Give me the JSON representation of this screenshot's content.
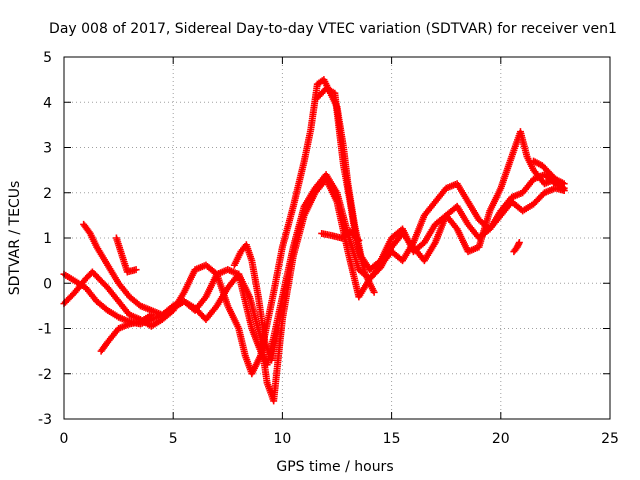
{
  "chart_data": {
    "type": "scatter",
    "title": "Day 008 of 2017, Sidereal Day-to-day VTEC variation (SDTVAR) for receiver ven1",
    "xlabel": "GPS time / hours",
    "ylabel": "SDTVAR / TECUs",
    "xlim": [
      0,
      25
    ],
    "ylim": [
      -3,
      5
    ],
    "xticks": [
      "0",
      "5",
      "10",
      "15",
      "20",
      "25"
    ],
    "yticks": [
      "-3",
      "-2",
      "-1",
      "0",
      "1",
      "2",
      "3",
      "4",
      "5"
    ],
    "grid": true,
    "marker": "plus",
    "color": "#ff0000",
    "series": [
      {
        "points": [
          [
            0.0,
            0.2
          ],
          [
            0.5,
            0.05
          ],
          [
            1.0,
            -0.1
          ],
          [
            1.5,
            -0.4
          ],
          [
            2.0,
            -0.6
          ],
          [
            2.5,
            -0.75
          ],
          [
            3.0,
            -0.85
          ],
          [
            3.5,
            -0.9
          ],
          [
            4.0,
            -0.8
          ],
          [
            4.5,
            -0.7
          ],
          [
            5.0,
            -0.55
          ],
          [
            5.5,
            -0.4
          ],
          [
            6.0,
            -0.55
          ],
          [
            6.5,
            -0.8
          ],
          [
            7.0,
            -0.5
          ],
          [
            7.5,
            -0.1
          ],
          [
            8.0,
            0.2
          ],
          [
            8.3,
            -0.4
          ],
          [
            8.6,
            -1.0
          ],
          [
            9.0,
            -1.5
          ],
          [
            9.3,
            -1.8
          ],
          [
            9.6,
            -1.2
          ],
          [
            10.0,
            -0.3
          ],
          [
            10.5,
            0.8
          ],
          [
            11.0,
            1.7
          ],
          [
            11.5,
            2.1
          ],
          [
            12.0,
            2.4
          ],
          [
            12.5,
            2.0
          ],
          [
            13.0,
            1.1
          ],
          [
            13.5,
            0.3
          ],
          [
            14.0,
            0.1
          ],
          [
            14.5,
            0.35
          ],
          [
            15.0,
            0.8
          ],
          [
            15.5,
            1.1
          ],
          [
            16.0,
            0.8
          ],
          [
            16.5,
            0.5
          ],
          [
            17.0,
            0.9
          ],
          [
            17.5,
            1.5
          ],
          [
            18.0,
            1.7
          ],
          [
            18.5,
            1.3
          ],
          [
            19.0,
            1.0
          ],
          [
            19.5,
            1.2
          ],
          [
            20.0,
            1.6
          ],
          [
            20.5,
            1.9
          ],
          [
            21.0,
            2.0
          ],
          [
            21.5,
            2.3
          ],
          [
            22.0,
            2.4
          ],
          [
            22.5,
            2.2
          ],
          [
            22.9,
            2.1
          ]
        ]
      },
      {
        "points": [
          [
            0.0,
            -0.45
          ],
          [
            0.5,
            -0.2
          ],
          [
            1.0,
            0.1
          ],
          [
            1.3,
            0.25
          ],
          [
            1.5,
            0.15
          ],
          [
            2.0,
            -0.1
          ],
          [
            2.5,
            -0.4
          ],
          [
            3.0,
            -0.7
          ],
          [
            3.5,
            -0.8
          ],
          [
            4.0,
            -0.95
          ],
          [
            4.5,
            -0.8
          ],
          [
            5.0,
            -0.6
          ],
          [
            5.5,
            -0.2
          ],
          [
            6.0,
            0.3
          ],
          [
            6.5,
            0.4
          ],
          [
            7.0,
            0.2
          ],
          [
            7.5,
            0.3
          ],
          [
            8.0,
            0.2
          ],
          [
            8.5,
            -0.3
          ],
          [
            9.0,
            -1.2
          ],
          [
            9.3,
            -2.2
          ],
          [
            9.6,
            -2.6
          ],
          [
            10.0,
            -0.8
          ],
          [
            10.5,
            0.6
          ],
          [
            11.0,
            1.5
          ],
          [
            11.5,
            2.0
          ],
          [
            12.0,
            2.3
          ],
          [
            12.5,
            1.8
          ],
          [
            13.0,
            0.7
          ],
          [
            13.5,
            -0.3
          ],
          [
            14.0,
            0.1
          ],
          [
            14.5,
            0.4
          ],
          [
            15.0,
            0.7
          ],
          [
            15.5,
            0.5
          ],
          [
            16.0,
            0.9
          ],
          [
            16.5,
            1.5
          ],
          [
            17.0,
            1.8
          ],
          [
            17.5,
            2.1
          ],
          [
            18.0,
            2.2
          ],
          [
            18.5,
            1.8
          ],
          [
            19.0,
            1.4
          ],
          [
            19.5,
            1.2
          ],
          [
            20.0,
            1.5
          ],
          [
            20.5,
            1.8
          ],
          [
            21.0,
            1.6
          ],
          [
            21.5,
            1.75
          ],
          [
            22.0,
            2.0
          ],
          [
            22.5,
            2.1
          ],
          [
            22.9,
            2.05
          ]
        ]
      },
      {
        "points": [
          [
            0.9,
            1.3
          ],
          [
            1.2,
            1.1
          ],
          [
            1.5,
            0.8
          ],
          [
            2.0,
            0.4
          ],
          [
            2.5,
            0.0
          ],
          [
            3.0,
            -0.3
          ],
          [
            3.5,
            -0.5
          ],
          [
            4.0,
            -0.6
          ],
          [
            4.5,
            -0.7
          ],
          [
            5.0,
            -0.5
          ],
          [
            5.5,
            -0.4
          ],
          [
            6.0,
            -0.6
          ],
          [
            6.5,
            -0.3
          ],
          [
            7.0,
            0.2
          ],
          [
            7.5,
            -0.5
          ],
          [
            8.0,
            -1.0
          ],
          [
            8.3,
            -1.6
          ],
          [
            8.6,
            -2.0
          ],
          [
            9.0,
            -1.6
          ],
          [
            9.3,
            -0.9
          ],
          [
            9.6,
            -0.2
          ],
          [
            10.0,
            0.8
          ],
          [
            10.5,
            1.7
          ],
          [
            11.0,
            2.7
          ],
          [
            11.3,
            3.4
          ],
          [
            11.6,
            4.4
          ],
          [
            11.9,
            4.5
          ],
          [
            12.2,
            4.2
          ],
          [
            12.5,
            3.9
          ],
          [
            12.8,
            3.0
          ],
          [
            13.0,
            2.2
          ],
          [
            13.3,
            1.3
          ],
          [
            13.6,
            0.6
          ],
          [
            14.0,
            0.3
          ],
          [
            14.5,
            0.5
          ],
          [
            15.0,
            1.0
          ],
          [
            15.5,
            1.2
          ],
          [
            16.0,
            0.7
          ],
          [
            16.5,
            0.9
          ],
          [
            17.0,
            1.3
          ],
          [
            17.5,
            1.5
          ],
          [
            18.0,
            1.2
          ],
          [
            18.5,
            0.7
          ],
          [
            19.0,
            0.8
          ],
          [
            19.5,
            1.6
          ],
          [
            20.0,
            2.1
          ],
          [
            20.5,
            2.8
          ],
          [
            20.9,
            3.35
          ],
          [
            21.2,
            2.8
          ],
          [
            21.5,
            2.5
          ],
          [
            22.0,
            2.2
          ],
          [
            22.5,
            2.3
          ],
          [
            22.9,
            2.2
          ]
        ]
      },
      {
        "points": [
          [
            1.7,
            -1.5
          ],
          [
            2.0,
            -1.3
          ],
          [
            2.5,
            -1.0
          ],
          [
            3.0,
            -0.9
          ],
          [
            3.5,
            -0.85
          ],
          [
            4.0,
            -0.7
          ]
        ]
      },
      {
        "points": [
          [
            2.4,
            1.0
          ],
          [
            2.6,
            0.7
          ],
          [
            2.9,
            0.25
          ],
          [
            3.3,
            0.3
          ]
        ]
      },
      {
        "points": [
          [
            11.6,
            4.1
          ],
          [
            12.0,
            4.3
          ],
          [
            12.4,
            4.2
          ],
          [
            12.6,
            3.4
          ],
          [
            12.8,
            2.6
          ],
          [
            13.1,
            1.8
          ],
          [
            13.4,
            0.9
          ],
          [
            13.8,
            0.2
          ],
          [
            14.2,
            -0.2
          ]
        ]
      },
      {
        "points": [
          [
            11.8,
            1.1
          ],
          [
            12.3,
            1.05
          ],
          [
            12.7,
            1.0
          ],
          [
            13.1,
            1.15
          ],
          [
            13.5,
            0.95
          ]
        ]
      },
      {
        "points": [
          [
            20.6,
            0.7
          ],
          [
            20.75,
            0.8
          ],
          [
            20.85,
            0.9
          ]
        ]
      },
      {
        "points": [
          [
            21.5,
            2.7
          ],
          [
            21.9,
            2.6
          ],
          [
            22.3,
            2.4
          ],
          [
            22.7,
            2.2
          ],
          [
            22.9,
            2.05
          ]
        ]
      },
      {
        "points": [
          [
            7.8,
            0.4
          ],
          [
            8.1,
            0.7
          ],
          [
            8.35,
            0.85
          ],
          [
            8.6,
            0.5
          ],
          [
            8.9,
            -0.3
          ],
          [
            9.2,
            -1.3
          ],
          [
            9.5,
            -1.7
          ],
          [
            9.8,
            -1.0
          ]
        ]
      }
    ]
  }
}
